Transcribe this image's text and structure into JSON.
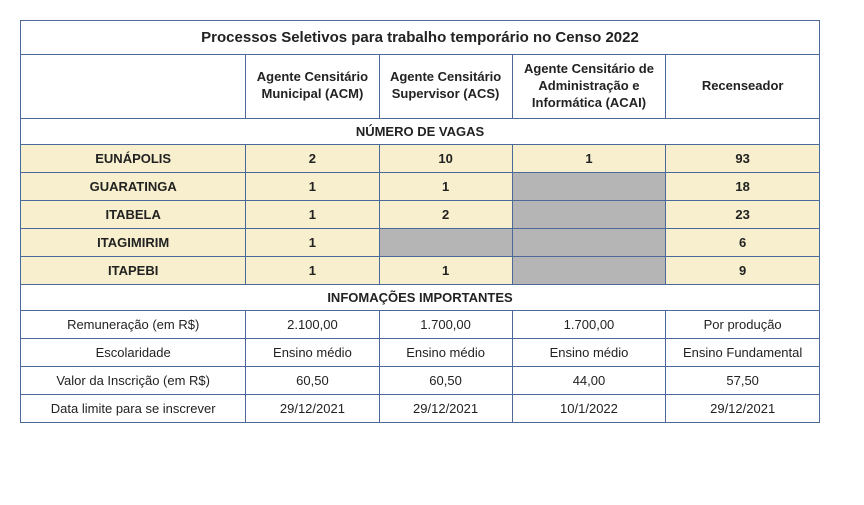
{
  "title": "Processos Seletivos para trabalho temporário no Censo 2022",
  "columns": [
    "",
    "Agente Censitário Municipal (ACM)",
    "Agente Censitário Supervisor (ACS)",
    "Agente Censitário de Administração e Informática (ACAI)",
    "Recenseador"
  ],
  "sections": {
    "vagas_header": "NÚMERO DE VAGAS",
    "info_header": "INFOMAÇÕES IMPORTANTES"
  },
  "vagas": [
    {
      "city": "EUNÁPOLIS",
      "values": [
        "2",
        "10",
        "1",
        "93"
      ]
    },
    {
      "city": "GUARATINGA",
      "values": [
        "1",
        "1",
        null,
        "18"
      ]
    },
    {
      "city": "ITABELA",
      "values": [
        "1",
        "2",
        null,
        "23"
      ]
    },
    {
      "city": "ITAGIMIRIM",
      "values": [
        "1",
        null,
        null,
        "6"
      ]
    },
    {
      "city": "ITAPEBI",
      "values": [
        "1",
        "1",
        null,
        "9"
      ]
    }
  ],
  "info_rows": [
    {
      "label": "Remuneração (em R$)",
      "values": [
        "2.100,00",
        "1.700,00",
        "1.700,00",
        "Por produção"
      ]
    },
    {
      "label": "Escolaridade",
      "values": [
        "Ensino médio",
        "Ensino médio",
        "Ensino médio",
        "Ensino Fundamental"
      ]
    },
    {
      "label": "Valor da Inscrição (em R$)",
      "values": [
        "60,50",
        "60,50",
        "44,00",
        "57,50"
      ]
    },
    {
      "label": "Data limite para se inscrever",
      "values": [
        "29/12/2021",
        "29/12/2021",
        "10/1/2022",
        "29/12/2021"
      ]
    }
  ],
  "colors": {
    "border": "#4b6a99",
    "highlight_row": "#f7efcd",
    "na_cell": "#b5b5b5",
    "background": "#ffffff"
  }
}
